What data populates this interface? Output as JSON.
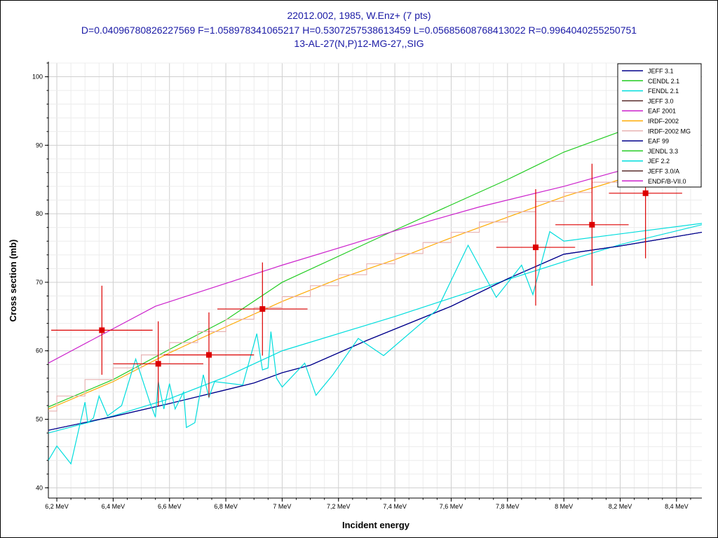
{
  "chart_data": {
    "type": "line",
    "title_lines": [
      "22012.002, 1985, W.Enz+ (7 pts)",
      "D=0.04096780826227569 F=1.058978341065217 H=0.5307257538613459 L=0.05685608768413022 R=0.9964040255250751",
      "13-AL-27(N,P)12-MG-27,,SIG"
    ],
    "xlabel": "Incident energy",
    "ylabel": "Cross section (mb)",
    "xlim": [
      6.17,
      8.49
    ],
    "ylim": [
      38.5,
      102
    ],
    "xticks": [
      {
        "v": 6.2,
        "label": "6,2 MeV"
      },
      {
        "v": 6.4,
        "label": "6,4 MeV"
      },
      {
        "v": 6.6,
        "label": "6,6 MeV"
      },
      {
        "v": 6.8,
        "label": "6,8 MeV"
      },
      {
        "v": 7.0,
        "label": "7 MeV"
      },
      {
        "v": 7.2,
        "label": "7,2 MeV"
      },
      {
        "v": 7.4,
        "label": "7,4 MeV"
      },
      {
        "v": 7.6,
        "label": "7,6 MeV"
      },
      {
        "v": 7.8,
        "label": "7,8 MeV"
      },
      {
        "v": 8.0,
        "label": "8 MeV"
      },
      {
        "v": 8.2,
        "label": "8,2 MeV"
      },
      {
        "v": 8.4,
        "label": "8,4 MeV"
      }
    ],
    "yticks": [
      {
        "v": 40,
        "label": "40"
      },
      {
        "v": 50,
        "label": "50"
      },
      {
        "v": 60,
        "label": "60"
      },
      {
        "v": 70,
        "label": "70"
      },
      {
        "v": 80,
        "label": "80"
      },
      {
        "v": 90,
        "label": "90"
      },
      {
        "v": 100,
        "label": "100"
      }
    ],
    "grid": true,
    "legend_position": "top-right",
    "series": [
      {
        "name": "JEFF 3.1",
        "color": "#00008b",
        "points": [
          [
            6.17,
            48.4
          ],
          [
            6.4,
            50.4
          ],
          [
            6.6,
            52.3
          ],
          [
            6.8,
            54.3
          ],
          [
            6.9,
            55.3
          ],
          [
            7.0,
            56.8
          ],
          [
            7.1,
            57.9
          ],
          [
            7.3,
            61.5
          ],
          [
            7.6,
            66.5
          ],
          [
            7.8,
            70.5
          ],
          [
            8.0,
            74.1
          ],
          [
            8.2,
            75.3
          ],
          [
            8.49,
            77.3
          ]
        ]
      },
      {
        "name": "CENDL 2.1",
        "color": "#22cc22",
        "points": [
          [
            6.17,
            51.8
          ],
          [
            6.4,
            55.8
          ],
          [
            6.6,
            60.2
          ],
          [
            6.8,
            64.5
          ],
          [
            7.0,
            70.0
          ],
          [
            7.4,
            77.6
          ],
          [
            7.8,
            85.0
          ],
          [
            8.0,
            89.0
          ],
          [
            8.2,
            92.0
          ]
        ]
      },
      {
        "name": "FENDL 2.1",
        "color": "#00dddd",
        "points": [
          [
            6.17,
            48.0
          ],
          [
            6.4,
            50.5
          ],
          [
            6.6,
            53.0
          ],
          [
            6.8,
            56.2
          ],
          [
            7.0,
            60.0
          ],
          [
            7.4,
            65.0
          ],
          [
            7.8,
            70.4
          ],
          [
            8.0,
            73.0
          ],
          [
            8.2,
            75.5
          ],
          [
            8.49,
            78.4
          ]
        ]
      },
      {
        "name": "JEFF 3.0",
        "color": "#5a2d2d",
        "points": []
      },
      {
        "name": "EAF 2001",
        "color": "#cc22cc",
        "points": [
          [
            6.17,
            58.2
          ],
          [
            6.55,
            66.5
          ],
          [
            7.0,
            72.5
          ],
          [
            7.4,
            77.5
          ],
          [
            7.7,
            81.0
          ],
          [
            8.0,
            84.0
          ],
          [
            8.2,
            86.3
          ]
        ]
      },
      {
        "name": "IRDF-2002",
        "color": "#ffaa00",
        "points": [
          [
            6.17,
            51.5
          ],
          [
            6.4,
            55.5
          ],
          [
            6.6,
            59.7
          ],
          [
            6.8,
            63.5
          ],
          [
            7.0,
            67.2
          ],
          [
            7.2,
            70.5
          ],
          [
            7.4,
            73.3
          ],
          [
            7.6,
            76.5
          ],
          [
            7.8,
            79.5
          ],
          [
            8.0,
            82.5
          ],
          [
            8.2,
            85.0
          ]
        ]
      },
      {
        "name": "IRDF-2002 MG",
        "color": "#e8b4b4",
        "points": [
          [
            6.17,
            51.2
          ],
          [
            6.2,
            51.2
          ],
          [
            6.2,
            53.4
          ],
          [
            6.3,
            53.4
          ],
          [
            6.3,
            55.8
          ],
          [
            6.4,
            55.8
          ],
          [
            6.4,
            57.5
          ],
          [
            6.5,
            57.5
          ],
          [
            6.5,
            59.4
          ],
          [
            6.6,
            59.4
          ],
          [
            6.6,
            61.2
          ],
          [
            6.7,
            61.2
          ],
          [
            6.7,
            62.8
          ],
          [
            6.8,
            62.8
          ],
          [
            6.8,
            64.6
          ],
          [
            6.9,
            64.6
          ],
          [
            6.9,
            66.3
          ],
          [
            7.0,
            66.3
          ],
          [
            7.0,
            67.9
          ],
          [
            7.1,
            67.9
          ],
          [
            7.1,
            69.5
          ],
          [
            7.2,
            69.5
          ],
          [
            7.2,
            71.1
          ],
          [
            7.3,
            71.1
          ],
          [
            7.3,
            72.7
          ],
          [
            7.4,
            72.7
          ],
          [
            7.4,
            74.2
          ],
          [
            7.5,
            74.2
          ],
          [
            7.5,
            75.8
          ],
          [
            7.6,
            75.8
          ],
          [
            7.6,
            77.3
          ],
          [
            7.7,
            77.3
          ],
          [
            7.7,
            78.8
          ],
          [
            7.8,
            78.8
          ],
          [
            7.8,
            80.3
          ],
          [
            7.9,
            80.3
          ],
          [
            7.9,
            81.8
          ],
          [
            8.0,
            81.8
          ],
          [
            8.0,
            83.1
          ],
          [
            8.1,
            83.1
          ],
          [
            8.1,
            84.6
          ],
          [
            8.2,
            84.6
          ]
        ]
      },
      {
        "name": "EAF 99",
        "color": "#00008b",
        "points": [
          [
            6.17,
            48.4
          ],
          [
            6.4,
            50.4
          ],
          [
            6.6,
            52.3
          ],
          [
            6.8,
            54.3
          ],
          [
            6.9,
            55.3
          ],
          [
            7.0,
            56.8
          ],
          [
            7.1,
            57.9
          ],
          [
            7.3,
            61.5
          ],
          [
            7.6,
            66.5
          ],
          [
            7.8,
            70.5
          ],
          [
            8.0,
            74.1
          ],
          [
            8.2,
            75.3
          ],
          [
            8.49,
            77.3
          ]
        ]
      },
      {
        "name": "JENDL 3.3",
        "color": "#22cc22",
        "points": []
      },
      {
        "name": "JEF 2.2",
        "color": "#00dddd",
        "points": [
          [
            6.17,
            44.0
          ],
          [
            6.2,
            46.1
          ],
          [
            6.25,
            43.5
          ],
          [
            6.3,
            52.5
          ],
          [
            6.31,
            49.5
          ],
          [
            6.33,
            50.2
          ],
          [
            6.35,
            53.4
          ],
          [
            6.38,
            50.5
          ],
          [
            6.43,
            52.0
          ],
          [
            6.48,
            58.8
          ],
          [
            6.53,
            52.5
          ],
          [
            6.55,
            50.3
          ],
          [
            6.56,
            55.5
          ],
          [
            6.58,
            51.5
          ],
          [
            6.6,
            55.2
          ],
          [
            6.62,
            51.5
          ],
          [
            6.65,
            54.0
          ],
          [
            6.66,
            48.8
          ],
          [
            6.69,
            49.5
          ],
          [
            6.72,
            56.5
          ],
          [
            6.74,
            53.2
          ],
          [
            6.76,
            55.5
          ],
          [
            6.86,
            55.0
          ],
          [
            6.91,
            62.5
          ],
          [
            6.93,
            57.2
          ],
          [
            6.95,
            57.5
          ],
          [
            6.96,
            62.8
          ],
          [
            6.98,
            56.0
          ],
          [
            7.0,
            54.7
          ],
          [
            7.08,
            58.2
          ],
          [
            7.12,
            53.5
          ],
          [
            7.18,
            56.5
          ],
          [
            7.27,
            61.8
          ],
          [
            7.36,
            59.3
          ],
          [
            7.55,
            66.0
          ],
          [
            7.66,
            75.4
          ],
          [
            7.76,
            67.8
          ],
          [
            7.85,
            72.5
          ],
          [
            7.89,
            68.2
          ],
          [
            7.95,
            77.4
          ],
          [
            8.0,
            76.0
          ],
          [
            8.49,
            78.6
          ]
        ]
      },
      {
        "name": "JEFF 3.0/A",
        "color": "#5a2d2d",
        "points": []
      },
      {
        "name": "ENDF/B-VII.0",
        "color": "#cc22cc",
        "points": []
      }
    ],
    "experiment": {
      "color": "#dd0000",
      "points": [
        {
          "x": 6.36,
          "y": 63.0,
          "xerr": 0.18,
          "yerr": 6.5
        },
        {
          "x": 6.56,
          "y": 58.1,
          "xerr": 0.16,
          "yerr": 6.2
        },
        {
          "x": 6.74,
          "y": 59.4,
          "xerr": 0.16,
          "yerr": 6.2
        },
        {
          "x": 6.93,
          "y": 66.1,
          "xerr": 0.16,
          "yerr": 6.8
        },
        {
          "x": 7.9,
          "y": 75.1,
          "xerr": 0.14,
          "yerr": 8.5
        },
        {
          "x": 8.1,
          "y": 78.4,
          "xerr": 0.13,
          "yerr": 8.9
        },
        {
          "x": 8.29,
          "y": 83.0,
          "xerr": 0.13,
          "yerr": 9.5
        }
      ]
    }
  }
}
